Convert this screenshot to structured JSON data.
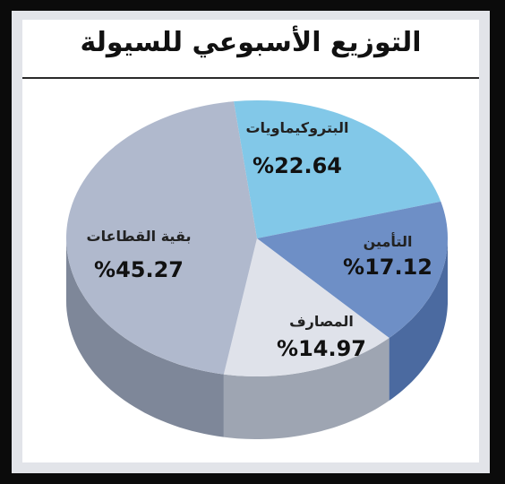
{
  "title": "التوزيع الأسبوعي للسيولة",
  "chart_data": {
    "type": "pie",
    "categories": [
      "البتروكيماويات",
      "التأمين",
      "المصارف",
      "بقية القطاعات"
    ],
    "values": [
      22.64,
      17.12,
      14.97,
      45.27
    ],
    "value_labels": [
      "%22.64",
      "%17.12",
      "%14.97",
      "%45.27"
    ],
    "colors": [
      "#82c8e8",
      "#6e8fc6",
      "#dfe2ea",
      "#b0b9cd"
    ],
    "side_colors": [
      "#4f6f8f",
      "#4b6aa0",
      "#9ea5b2",
      "#7e8799"
    ],
    "legend": "none"
  }
}
